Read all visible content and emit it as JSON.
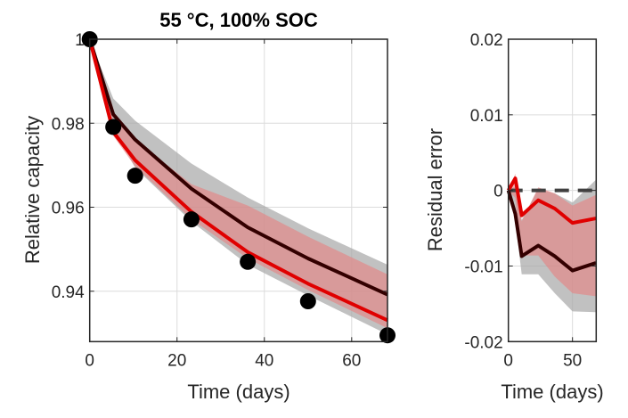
{
  "chart_data": [
    {
      "type": "line",
      "title": "55 °C, 100% SOC",
      "xlabel": "Time (days)",
      "ylabel": "Relative capacity",
      "xlim": [
        0,
        68.2
      ],
      "ylim": [
        0.928,
        1.0
      ],
      "xticks": [
        "0",
        "20",
        "40",
        "60"
      ],
      "xtick_values": [
        0,
        20,
        40,
        60
      ],
      "yticks": [
        "1",
        "0.98",
        "0.96",
        "0.94"
      ],
      "ytick_values": [
        1.0,
        0.98,
        0.96,
        0.94
      ],
      "grid": true,
      "x": [
        0,
        5.4,
        10.4,
        23.3,
        36.2,
        50,
        68.2
      ],
      "scatter": {
        "values": [
          1.0,
          0.9791,
          0.9675,
          0.9571,
          0.947,
          0.9376,
          0.9295
        ],
        "color": "#000000"
      },
      "series": [
        {
          "values": [
            1.0,
            0.9821,
            0.9761,
            0.9644,
            0.9552,
            0.9478,
            0.9392
          ],
          "color": "#330000",
          "band_upper": [
            1.0,
            0.9859,
            0.9806,
            0.9704,
            0.9623,
            0.955,
            0.9463
          ],
          "band_lower": [
            1.0,
            0.979,
            0.9694,
            0.9566,
            0.9463,
            0.939,
            0.9297
          ],
          "band_color": "#a6a6a6"
        },
        {
          "values": [
            1.0,
            0.9779,
            0.9712,
            0.9589,
            0.9493,
            0.9418,
            0.9331
          ],
          "color": "#e00000",
          "band_upper": [
            1.0,
            0.981,
            0.976,
            0.9655,
            0.9604,
            0.953,
            0.944
          ],
          "band_lower": [
            1.0,
            0.977,
            0.9697,
            0.9571,
            0.9478,
            0.9403,
            0.9312
          ],
          "band_color": "#e88080"
        }
      ]
    },
    {
      "type": "line",
      "title": "",
      "xlabel": "Time (days)",
      "ylabel": "Residual error",
      "xlim": [
        0,
        68.5
      ],
      "ylim": [
        -0.02,
        0.02
      ],
      "xticks": [
        "0",
        "50"
      ],
      "xtick_values": [
        0,
        50
      ],
      "yticks": [
        "0.02",
        "0.01",
        "0",
        "-0.01",
        "-0.02"
      ],
      "ytick_values": [
        0.02,
        0.01,
        0,
        -0.01,
        -0.02
      ],
      "grid": true,
      "reference_line": {
        "value": 0,
        "style": "dashed",
        "color": "#404040"
      },
      "x": [
        0,
        5.4,
        10.4,
        23.3,
        36.2,
        50,
        68.2
      ],
      "series": [
        {
          "values": [
            0,
            -0.0031,
            -0.0087,
            -0.0073,
            -0.0087,
            -0.0106,
            -0.0096
          ],
          "color": "#330000",
          "band_upper": [
            0,
            0.0005,
            -0.0039,
            0.0002,
            -0.0004,
            -0.0016,
            0.0014
          ],
          "band_lower": [
            0,
            -0.004,
            -0.0111,
            -0.0111,
            -0.0136,
            -0.016,
            -0.0161
          ],
          "band_color": "#a6a6a6"
        },
        {
          "values": [
            0,
            0.0016,
            -0.0033,
            -0.0013,
            -0.0024,
            -0.0043,
            -0.0037
          ],
          "color": "#e00000",
          "band_upper": [
            0,
            0.0022,
            -0.0041,
            0.0004,
            -0.0004,
            -0.002,
            -0.0006
          ],
          "band_lower": [
            0,
            -0.001,
            -0.0086,
            -0.0086,
            -0.0114,
            -0.0136,
            -0.014
          ],
          "band_color": "#e88080"
        }
      ]
    }
  ]
}
